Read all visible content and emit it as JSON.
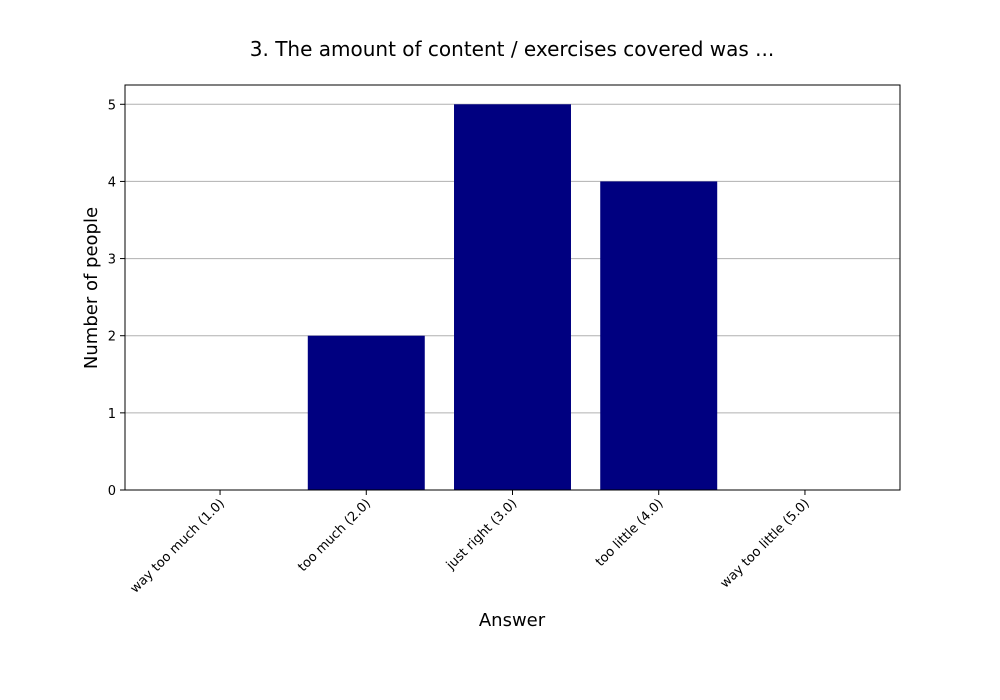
{
  "chart_data": {
    "type": "bar",
    "title": "3. The amount of content / exercises covered was ...",
    "xlabel": "Answer",
    "ylabel": "Number of people",
    "categories": [
      "way too much (1.0)",
      "too much (2.0)",
      "just right (3.0)",
      "too little (4.0)",
      "way too little (5.0)"
    ],
    "values": [
      0,
      2,
      5,
      4,
      0
    ],
    "yticks": [
      0,
      1,
      2,
      3,
      4,
      5
    ],
    "ylim": [
      0,
      5.25
    ],
    "grid": "y",
    "bar_color": "#000080"
  }
}
